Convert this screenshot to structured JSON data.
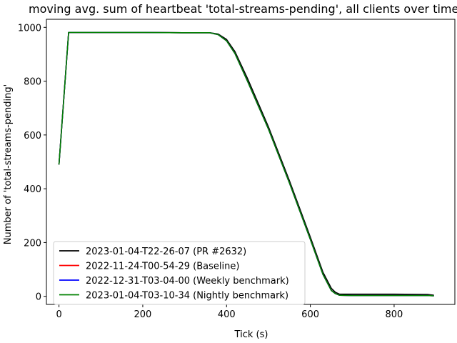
{
  "chart_data": {
    "type": "line",
    "title": "moving avg. sum of heartbeat 'total-streams-pending', all clients over time",
    "xlabel": "Tick (s)",
    "ylabel": "Number of 'total-streams-pending'",
    "xlim": [
      -30,
      945
    ],
    "ylim": [
      -30,
      1030
    ],
    "xticks": [
      0,
      200,
      400,
      600,
      800
    ],
    "yticks": [
      0,
      200,
      400,
      600,
      800,
      1000
    ],
    "grid": false,
    "legend_position": "lower-left",
    "series": [
      {
        "name": "2023-01-04-T22-26-07 (PR #2632)",
        "color": "#000000",
        "x": [
          0,
          23,
          100,
          200,
          300,
          360,
          380,
          400,
          420,
          450,
          500,
          550,
          600,
          630,
          650,
          660,
          670,
          700,
          800,
          880,
          895
        ],
        "y": [
          490,
          981,
          981,
          981,
          980,
          980,
          975,
          955,
          910,
          810,
          630,
          430,
          220,
          90,
          30,
          15,
          8,
          8,
          8,
          7,
          4
        ]
      },
      {
        "name": "2022-11-24-T00-54-29 (Baseline)",
        "color": "#ff0000",
        "x": [
          0,
          23,
          100,
          200,
          300,
          360,
          380,
          400,
          420,
          450,
          500,
          550,
          600,
          630,
          650,
          660,
          670,
          700,
          800,
          880,
          895
        ],
        "y": [
          490,
          981,
          981,
          981,
          980,
          980,
          973,
          950,
          903,
          800,
          622,
          422,
          212,
          82,
          22,
          10,
          4,
          3,
          3,
          3,
          2
        ]
      },
      {
        "name": "2022-12-31-T03-04-00 (Weekly benchmark)",
        "color": "#0000ff",
        "x": [
          0,
          23,
          100,
          200,
          300,
          360,
          380,
          400,
          420,
          450,
          500,
          550,
          600,
          630,
          650,
          660,
          670,
          700,
          800,
          880,
          895
        ],
        "y": [
          490,
          981,
          981,
          981,
          980,
          980,
          973,
          950,
          903,
          800,
          622,
          422,
          212,
          82,
          22,
          10,
          4,
          3,
          3,
          3,
          2
        ]
      },
      {
        "name": "2023-01-04-T03-10-34 (Nightly benchmark)",
        "color": "#008000",
        "x": [
          0,
          23,
          100,
          200,
          300,
          360,
          380,
          400,
          420,
          450,
          500,
          550,
          600,
          630,
          650,
          660,
          670,
          700,
          800,
          880,
          895
        ],
        "y": [
          490,
          981,
          981,
          981,
          980,
          980,
          973,
          950,
          903,
          800,
          622,
          422,
          212,
          82,
          22,
          10,
          4,
          3,
          3,
          3,
          2
        ]
      }
    ]
  }
}
